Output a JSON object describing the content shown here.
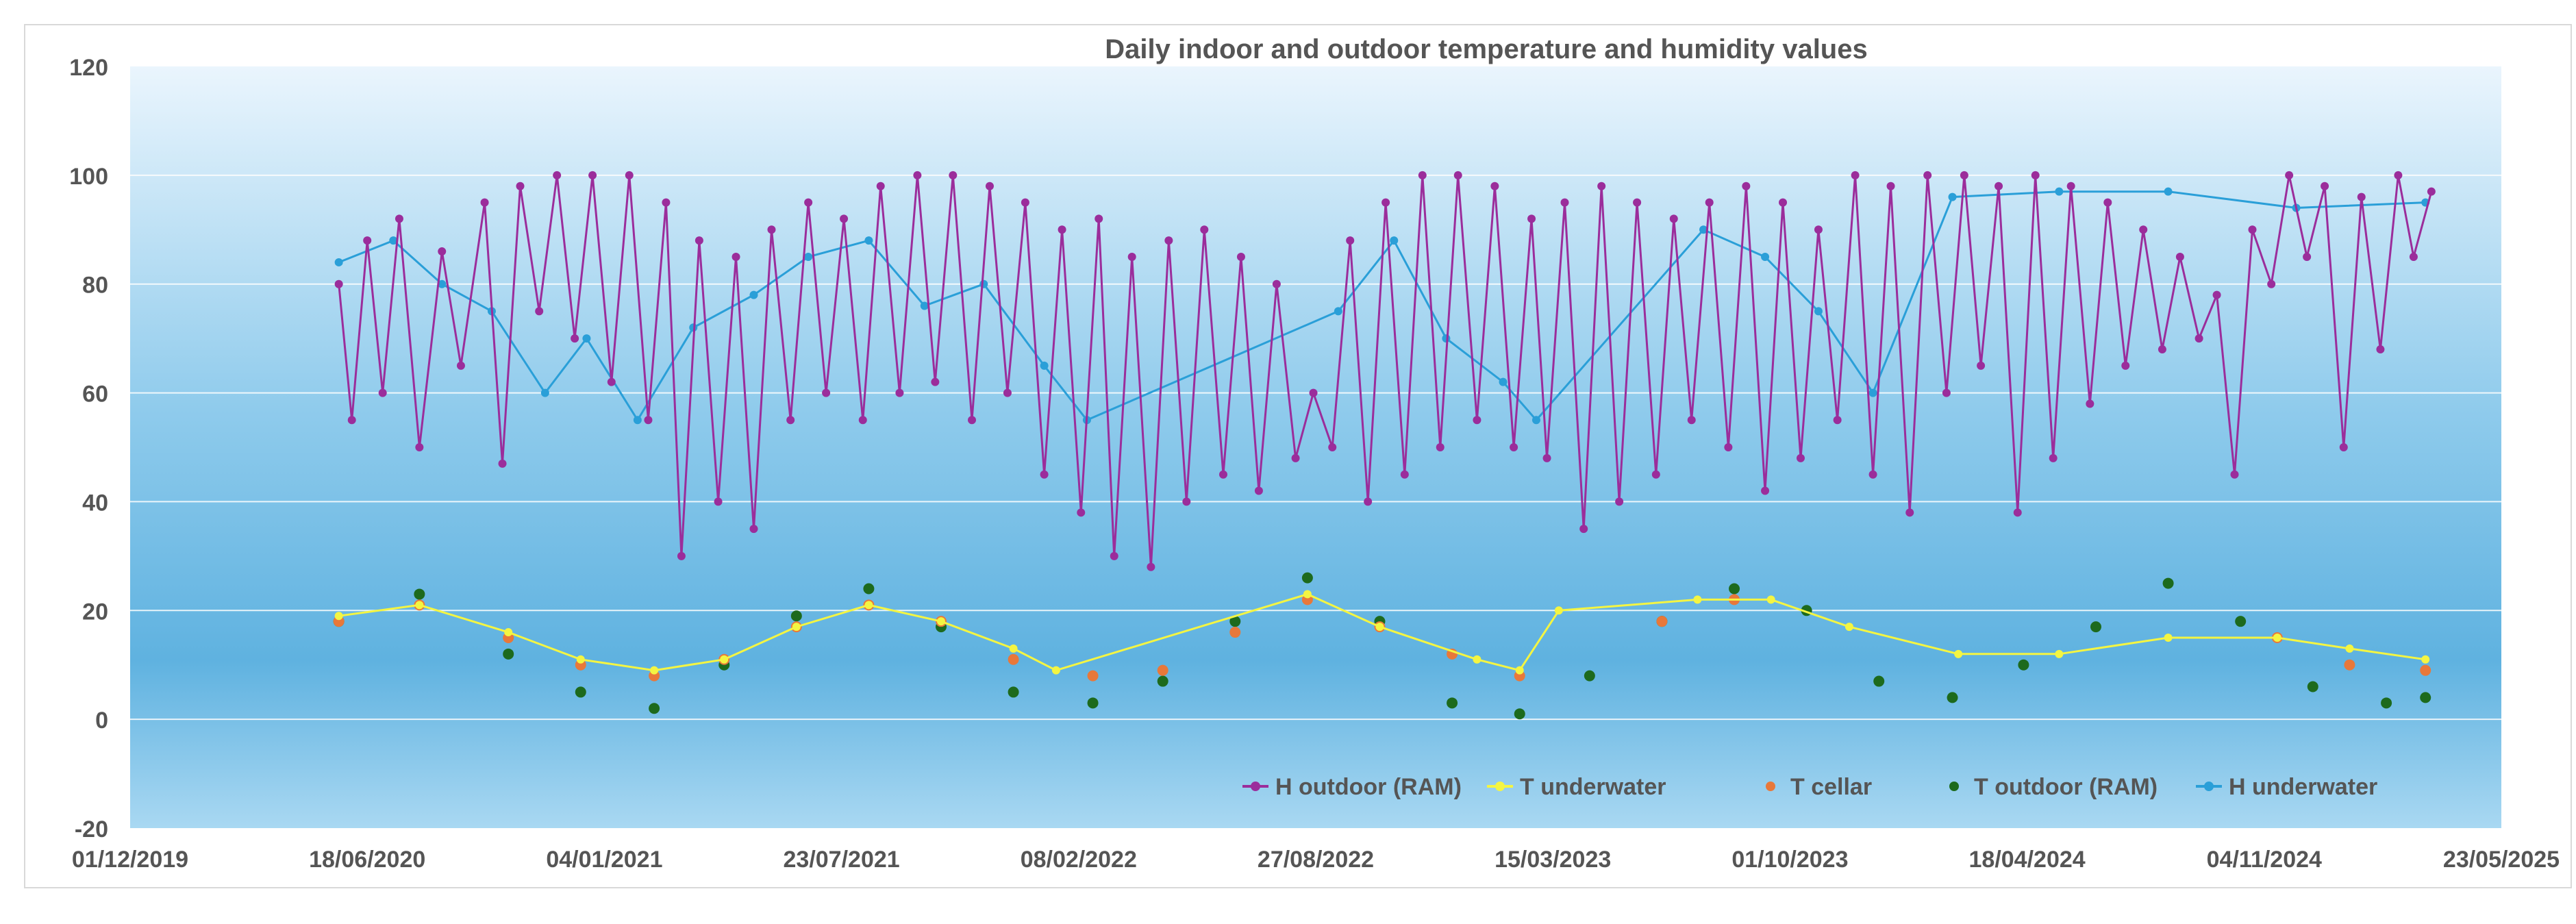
{
  "colors": {
    "background_top": "#eaf5fd",
    "background_mid": "#8fcbec",
    "background_low": "#5fb2e0",
    "background_bottom": "#a9d8f2",
    "axis_text": "#555555",
    "gridline": "#ffffff",
    "h_outdoor": "#9b2d9b",
    "t_underwater": "#f4f542",
    "t_cellar": "#e8783a",
    "t_outdoor": "#1d6a1d",
    "h_underwater": "#2a9fd8"
  },
  "chart_data": {
    "type": "line",
    "title": "Daily indoor and outdoor temperature and humidity values",
    "xlabel": "",
    "ylabel": "",
    "ylim": [
      -20,
      120
    ],
    "yticks": [
      -20,
      0,
      20,
      40,
      60,
      80,
      100,
      120
    ],
    "ytick_labels": [
      "-20",
      "0",
      "20",
      "40",
      "60",
      "80",
      "100",
      "120"
    ],
    "xlim": [
      "2019-12-01",
      "2025-05-23"
    ],
    "xticks": [
      "2019-12-01",
      "2020-06-18",
      "2021-01-04",
      "2021-07-23",
      "2022-02-08",
      "2022-08-27",
      "2023-03-15",
      "2023-10-01",
      "2024-04-18",
      "2024-11-04",
      "2025-05-23"
    ],
    "xtick_labels": [
      "01/12/2019",
      "18/06/2020",
      "04/01/2021",
      "23/07/2021",
      "08/02/2022",
      "27/08/2022",
      "15/03/2023",
      "01/10/2023",
      "18/04/2024",
      "04/11/2024",
      "23/05/2025"
    ],
    "grid": true,
    "legend_position": "bottom-right",
    "series": [
      {
        "name": "H outdoor (RAM)",
        "marker": "line-dot",
        "points": [
          [
            "2020-05-25",
            80
          ],
          [
            "2020-06-05",
            55
          ],
          [
            "2020-06-18",
            88
          ],
          [
            "2020-07-01",
            60
          ],
          [
            "2020-07-15",
            92
          ],
          [
            "2020-08-01",
            50
          ],
          [
            "2020-08-20",
            86
          ],
          [
            "2020-09-05",
            65
          ],
          [
            "2020-09-25",
            95
          ],
          [
            "2020-10-10",
            47
          ],
          [
            "2020-10-25",
            98
          ],
          [
            "2020-11-10",
            75
          ],
          [
            "2020-11-25",
            100
          ],
          [
            "2020-12-10",
            70
          ],
          [
            "2020-12-25",
            100
          ],
          [
            "2021-01-10",
            62
          ],
          [
            "2021-01-25",
            100
          ],
          [
            "2021-02-10",
            55
          ],
          [
            "2021-02-25",
            95
          ],
          [
            "2021-03-10",
            30
          ],
          [
            "2021-03-25",
            88
          ],
          [
            "2021-04-10",
            40
          ],
          [
            "2021-04-25",
            85
          ],
          [
            "2021-05-10",
            35
          ],
          [
            "2021-05-25",
            90
          ],
          [
            "2021-06-10",
            55
          ],
          [
            "2021-06-25",
            95
          ],
          [
            "2021-07-10",
            60
          ],
          [
            "2021-07-25",
            92
          ],
          [
            "2021-08-10",
            55
          ],
          [
            "2021-08-25",
            98
          ],
          [
            "2021-09-10",
            60
          ],
          [
            "2021-09-25",
            100
          ],
          [
            "2021-10-10",
            62
          ],
          [
            "2021-10-25",
            100
          ],
          [
            "2021-11-10",
            55
          ],
          [
            "2021-11-25",
            98
          ],
          [
            "2021-12-10",
            60
          ],
          [
            "2021-12-25",
            95
          ],
          [
            "2022-01-10",
            45
          ],
          [
            "2022-01-25",
            90
          ],
          [
            "2022-02-10",
            38
          ],
          [
            "2022-02-25",
            92
          ],
          [
            "2022-03-10",
            30
          ],
          [
            "2022-03-25",
            85
          ],
          [
            "2022-04-10",
            28
          ],
          [
            "2022-04-25",
            88
          ],
          [
            "2022-05-10",
            40
          ],
          [
            "2022-05-25",
            90
          ],
          [
            "2022-06-10",
            45
          ],
          [
            "2022-06-25",
            85
          ],
          [
            "2022-07-10",
            42
          ],
          [
            "2022-07-25",
            80
          ],
          [
            "2022-08-10",
            48
          ],
          [
            "2022-08-25",
            60
          ],
          [
            "2022-09-10",
            50
          ],
          [
            "2022-09-25",
            88
          ],
          [
            "2022-10-10",
            40
          ],
          [
            "2022-10-25",
            95
          ],
          [
            "2022-11-10",
            45
          ],
          [
            "2022-11-25",
            100
          ],
          [
            "2022-12-10",
            50
          ],
          [
            "2022-12-25",
            100
          ],
          [
            "2023-01-10",
            55
          ],
          [
            "2023-01-25",
            98
          ],
          [
            "2023-02-10",
            50
          ],
          [
            "2023-02-25",
            92
          ],
          [
            "2023-03-10",
            48
          ],
          [
            "2023-03-25",
            95
          ],
          [
            "2023-04-10",
            35
          ],
          [
            "2023-04-25",
            98
          ],
          [
            "2023-05-10",
            40
          ],
          [
            "2023-05-25",
            95
          ],
          [
            "2023-06-10",
            45
          ],
          [
            "2023-06-25",
            92
          ],
          [
            "2023-07-10",
            55
          ],
          [
            "2023-07-25",
            95
          ],
          [
            "2023-08-10",
            50
          ],
          [
            "2023-08-25",
            98
          ],
          [
            "2023-09-10",
            42
          ],
          [
            "2023-09-25",
            95
          ],
          [
            "2023-10-10",
            48
          ],
          [
            "2023-10-25",
            90
          ],
          [
            "2023-11-10",
            55
          ],
          [
            "2023-11-25",
            100
          ],
          [
            "2023-12-10",
            45
          ],
          [
            "2023-12-25",
            98
          ],
          [
            "2024-01-10",
            38
          ],
          [
            "2024-01-25",
            100
          ],
          [
            "2024-02-10",
            60
          ],
          [
            "2024-02-25",
            100
          ],
          [
            "2024-03-10",
            65
          ],
          [
            "2024-03-25",
            98
          ],
          [
            "2024-04-10",
            38
          ],
          [
            "2024-04-25",
            100
          ],
          [
            "2024-05-10",
            48
          ],
          [
            "2024-05-25",
            98
          ],
          [
            "2024-06-10",
            58
          ],
          [
            "2024-06-25",
            95
          ],
          [
            "2024-07-10",
            65
          ],
          [
            "2024-07-25",
            90
          ],
          [
            "2024-08-10",
            68
          ],
          [
            "2024-08-25",
            85
          ],
          [
            "2024-09-10",
            70
          ],
          [
            "2024-09-25",
            78
          ],
          [
            "2024-10-10",
            45
          ],
          [
            "2024-10-25",
            90
          ],
          [
            "2024-11-10",
            80
          ],
          [
            "2024-11-25",
            100
          ],
          [
            "2024-12-10",
            85
          ],
          [
            "2024-12-25",
            98
          ],
          [
            "2025-01-10",
            50
          ],
          [
            "2025-01-25",
            96
          ],
          [
            "2025-02-10",
            68
          ],
          [
            "2025-02-25",
            100
          ],
          [
            "2025-03-10",
            85
          ],
          [
            "2025-03-25",
            97
          ]
        ]
      },
      {
        "name": "T underwater",
        "marker": "line-dot",
        "points": [
          [
            "2020-05-25",
            19
          ],
          [
            "2020-08-01",
            21
          ],
          [
            "2020-10-15",
            16
          ],
          [
            "2020-12-15",
            11
          ],
          [
            "2021-02-15",
            9
          ],
          [
            "2021-04-15",
            11
          ],
          [
            "2021-06-15",
            17
          ],
          [
            "2021-08-15",
            21
          ],
          [
            "2021-10-15",
            18
          ],
          [
            "2021-12-15",
            13
          ],
          [
            "2022-01-20",
            9
          ],
          [
            "2022-08-20",
            23
          ],
          [
            "2022-10-20",
            17
          ],
          [
            "2023-01-10",
            11
          ],
          [
            "2023-02-15",
            9
          ],
          [
            "2023-03-20",
            20
          ],
          [
            "2023-07-15",
            22
          ],
          [
            "2023-09-15",
            22
          ],
          [
            "2023-11-20",
            17
          ],
          [
            "2024-02-20",
            12
          ],
          [
            "2024-05-15",
            12
          ],
          [
            "2024-08-15",
            15
          ],
          [
            "2024-11-15",
            15
          ],
          [
            "2025-01-15",
            13
          ],
          [
            "2025-03-20",
            11
          ]
        ]
      },
      {
        "name": "T cellar",
        "marker": "dot",
        "points": [
          [
            "2020-05-25",
            18
          ],
          [
            "2020-08-01",
            21
          ],
          [
            "2020-10-15",
            15
          ],
          [
            "2020-12-15",
            10
          ],
          [
            "2021-02-15",
            8
          ],
          [
            "2021-04-15",
            11
          ],
          [
            "2021-06-15",
            17
          ],
          [
            "2021-08-15",
            21
          ],
          [
            "2021-10-15",
            18
          ],
          [
            "2021-12-15",
            11
          ],
          [
            "2022-02-20",
            8
          ],
          [
            "2022-04-20",
            9
          ],
          [
            "2022-06-20",
            16
          ],
          [
            "2022-08-20",
            22
          ],
          [
            "2022-10-20",
            17
          ],
          [
            "2022-12-20",
            12
          ],
          [
            "2023-02-15",
            8
          ],
          [
            "2023-06-15",
            18
          ],
          [
            "2023-08-15",
            22
          ],
          [
            "2024-11-15",
            15
          ],
          [
            "2025-01-15",
            10
          ],
          [
            "2025-03-20",
            9
          ]
        ]
      },
      {
        "name": "T outdoor (RAM)",
        "marker": "dot",
        "points": [
          [
            "2020-05-25",
            18
          ],
          [
            "2020-08-01",
            23
          ],
          [
            "2020-10-15",
            12
          ],
          [
            "2020-12-15",
            5
          ],
          [
            "2021-02-15",
            2
          ],
          [
            "2021-04-15",
            10
          ],
          [
            "2021-06-15",
            19
          ],
          [
            "2021-08-15",
            24
          ],
          [
            "2021-10-15",
            17
          ],
          [
            "2021-12-15",
            5
          ],
          [
            "2022-02-20",
            3
          ],
          [
            "2022-04-20",
            7
          ],
          [
            "2022-06-20",
            18
          ],
          [
            "2022-08-20",
            26
          ],
          [
            "2022-10-20",
            18
          ],
          [
            "2022-12-20",
            3
          ],
          [
            "2023-02-15",
            1
          ],
          [
            "2023-04-15",
            8
          ],
          [
            "2023-06-15",
            18
          ],
          [
            "2023-08-15",
            24
          ],
          [
            "2023-10-15",
            20
          ],
          [
            "2023-12-15",
            7
          ],
          [
            "2024-02-15",
            4
          ],
          [
            "2024-04-15",
            10
          ],
          [
            "2024-06-15",
            17
          ],
          [
            "2024-08-15",
            25
          ],
          [
            "2024-10-15",
            18
          ],
          [
            "2024-12-15",
            6
          ],
          [
            "2025-02-15",
            3
          ],
          [
            "2025-03-20",
            4
          ]
        ]
      },
      {
        "name": "H underwater",
        "marker": "line-dot",
        "points": [
          [
            "2020-05-25",
            84
          ],
          [
            "2020-07-10",
            88
          ],
          [
            "2020-08-20",
            80
          ],
          [
            "2020-10-01",
            75
          ],
          [
            "2020-11-15",
            60
          ],
          [
            "2020-12-20",
            70
          ],
          [
            "2021-02-01",
            55
          ],
          [
            "2021-03-20",
            72
          ],
          [
            "2021-05-10",
            78
          ],
          [
            "2021-06-25",
            85
          ],
          [
            "2021-08-15",
            88
          ],
          [
            "2021-10-01",
            76
          ],
          [
            "2021-11-20",
            80
          ],
          [
            "2022-01-10",
            65
          ],
          [
            "2022-02-15",
            55
          ],
          [
            "2022-09-15",
            75
          ],
          [
            "2022-11-01",
            88
          ],
          [
            "2022-12-15",
            70
          ],
          [
            "2023-02-01",
            62
          ],
          [
            "2023-03-01",
            55
          ],
          [
            "2023-07-20",
            90
          ],
          [
            "2023-09-10",
            85
          ],
          [
            "2023-10-25",
            75
          ],
          [
            "2023-12-10",
            60
          ],
          [
            "2024-02-15",
            96
          ],
          [
            "2024-05-15",
            97
          ],
          [
            "2024-08-15",
            97
          ],
          [
            "2024-12-01",
            94
          ],
          [
            "2025-03-20",
            95
          ]
        ]
      }
    ]
  }
}
